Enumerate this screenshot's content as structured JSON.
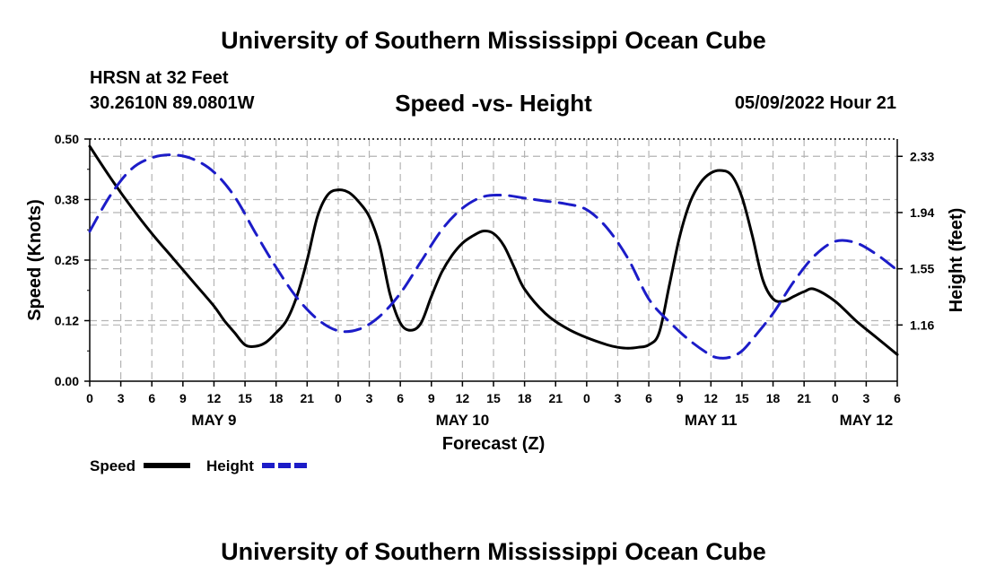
{
  "header": {
    "title": "University of Southern Mississippi Ocean Cube",
    "station": "HRSN at 32 Feet",
    "coordinates": "30.2610N  89.0801W",
    "subtitle": "Speed -vs- Height",
    "datetime": "05/09/2022 Hour 21"
  },
  "footer": {
    "title": "University of Southern Mississippi Ocean Cube"
  },
  "colors": {
    "speed": "#000000",
    "height": "#1c1cc8",
    "grid": "#b4b4b4"
  },
  "chart_data": {
    "type": "line",
    "title": "Speed -vs- Height",
    "xlabel": "Forecast (Z)",
    "ylabel": "Speed (Knots)",
    "y2label": "Height (feet)",
    "xlim": [
      0,
      78
    ],
    "ylim": [
      0,
      0.5
    ],
    "y2lim": [
      0.77,
      2.45
    ],
    "x_tick_positions": [
      0,
      3,
      6,
      9,
      12,
      15,
      18,
      21,
      24,
      27,
      30,
      33,
      36,
      39,
      42,
      45,
      48,
      51,
      54,
      57,
      60,
      63,
      66,
      69,
      72,
      75,
      78
    ],
    "x_tick_labels": [
      "0",
      "3",
      "6",
      "9",
      "12",
      "15",
      "18",
      "21",
      "0",
      "3",
      "6",
      "9",
      "12",
      "15",
      "18",
      "21",
      "0",
      "3",
      "6",
      "9",
      "12",
      "15",
      "18",
      "21",
      "0",
      "3",
      "6"
    ],
    "date_labels": [
      {
        "x": 12,
        "label": "MAY 9"
      },
      {
        "x": 36,
        "label": "MAY 10"
      },
      {
        "x": 60,
        "label": "MAY 11"
      },
      {
        "x": 75,
        "label": "MAY 12"
      }
    ],
    "y_ticks": [
      0.0,
      0.125,
      0.25,
      0.375,
      0.5
    ],
    "y_tick_labels": [
      "0.00",
      "0.12",
      "0.25",
      "0.38",
      "0.50"
    ],
    "y2_ticks": [
      1.16,
      1.55,
      1.94,
      2.33
    ],
    "y2_tick_labels": [
      "1.16",
      "1.55",
      "1.94",
      "2.33"
    ],
    "legend": [
      {
        "name": "Speed",
        "style": "solid"
      },
      {
        "name": "Height",
        "style": "dashed"
      }
    ],
    "series": [
      {
        "name": "Speed",
        "axis": "left",
        "style": "solid",
        "x": [
          0,
          2,
          4,
          6,
          8,
          10,
          12,
          13,
          14,
          15,
          16,
          17,
          18,
          19,
          20,
          21,
          22,
          23,
          24,
          25,
          26,
          27,
          28,
          29,
          30,
          31,
          32,
          33,
          34,
          35,
          36,
          37,
          38,
          39,
          40,
          41,
          42,
          44,
          46,
          48,
          50,
          51,
          52,
          53,
          54,
          55,
          56,
          57,
          58,
          59,
          60,
          61,
          62,
          63,
          64,
          65,
          66,
          67,
          68,
          69,
          70,
          72,
          74,
          76,
          78
        ],
        "y": [
          0.485,
          0.42,
          0.36,
          0.305,
          0.255,
          0.205,
          0.155,
          0.125,
          0.1,
          0.075,
          0.072,
          0.08,
          0.1,
          0.125,
          0.175,
          0.25,
          0.34,
          0.385,
          0.395,
          0.39,
          0.37,
          0.34,
          0.28,
          0.18,
          0.12,
          0.105,
          0.12,
          0.175,
          0.225,
          0.26,
          0.285,
          0.3,
          0.31,
          0.305,
          0.28,
          0.235,
          0.19,
          0.14,
          0.11,
          0.09,
          0.075,
          0.07,
          0.068,
          0.07,
          0.075,
          0.1,
          0.2,
          0.3,
          0.37,
          0.41,
          0.43,
          0.435,
          0.425,
          0.38,
          0.3,
          0.21,
          0.17,
          0.165,
          0.175,
          0.185,
          0.19,
          0.165,
          0.125,
          0.09,
          0.055
        ]
      },
      {
        "name": "Height",
        "axis": "right",
        "style": "dashed",
        "x": [
          0,
          2,
          4,
          6,
          8,
          10,
          12,
          14,
          16,
          18,
          20,
          22,
          24,
          26,
          28,
          30,
          32,
          34,
          36,
          38,
          40,
          42,
          44,
          46,
          48,
          50,
          52,
          54,
          56,
          58,
          60,
          61,
          62,
          63,
          64,
          66,
          68,
          70,
          72,
          74,
          76,
          78
        ],
        "y": [
          1.81,
          2.06,
          2.24,
          2.32,
          2.34,
          2.31,
          2.22,
          2.05,
          1.8,
          1.56,
          1.35,
          1.2,
          1.12,
          1.13,
          1.22,
          1.38,
          1.6,
          1.82,
          1.97,
          2.05,
          2.06,
          2.04,
          2.02,
          2.0,
          1.96,
          1.83,
          1.62,
          1.34,
          1.18,
          1.05,
          0.95,
          0.93,
          0.94,
          0.98,
          1.06,
          1.24,
          1.46,
          1.64,
          1.74,
          1.73,
          1.65,
          1.54
        ]
      }
    ]
  }
}
